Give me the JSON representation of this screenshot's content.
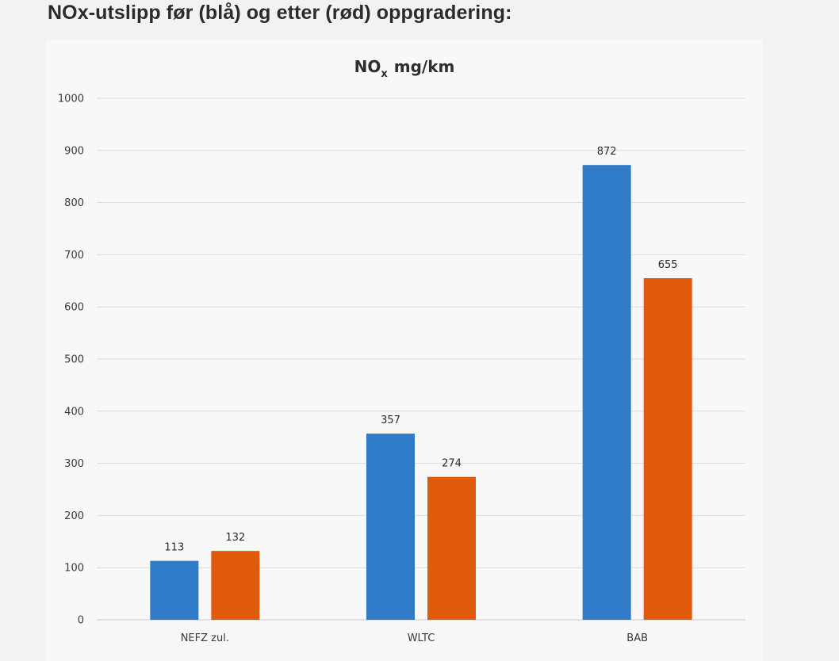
{
  "page": {
    "heading": "NOx-utslipp før (blå) og etter (rød) oppgradering:"
  },
  "chart_data": {
    "type": "bar",
    "title_main": "NO",
    "title_sub": "x",
    "title_rest": " mg/km",
    "categories": [
      "NEFZ zul.",
      "WLTC",
      "BAB"
    ],
    "series": [
      {
        "values": [
          113,
          357,
          872
        ],
        "color": "#2f7bc7"
      },
      {
        "values": [
          132,
          274,
          655
        ],
        "color": "#e05a0c"
      }
    ],
    "ylim": [
      0,
      1000
    ],
    "yticks": [
      0,
      100,
      200,
      300,
      400,
      500,
      600,
      700,
      800,
      900,
      1000
    ],
    "grid": true,
    "legend": "none",
    "xlabel": "",
    "ylabel": ""
  }
}
